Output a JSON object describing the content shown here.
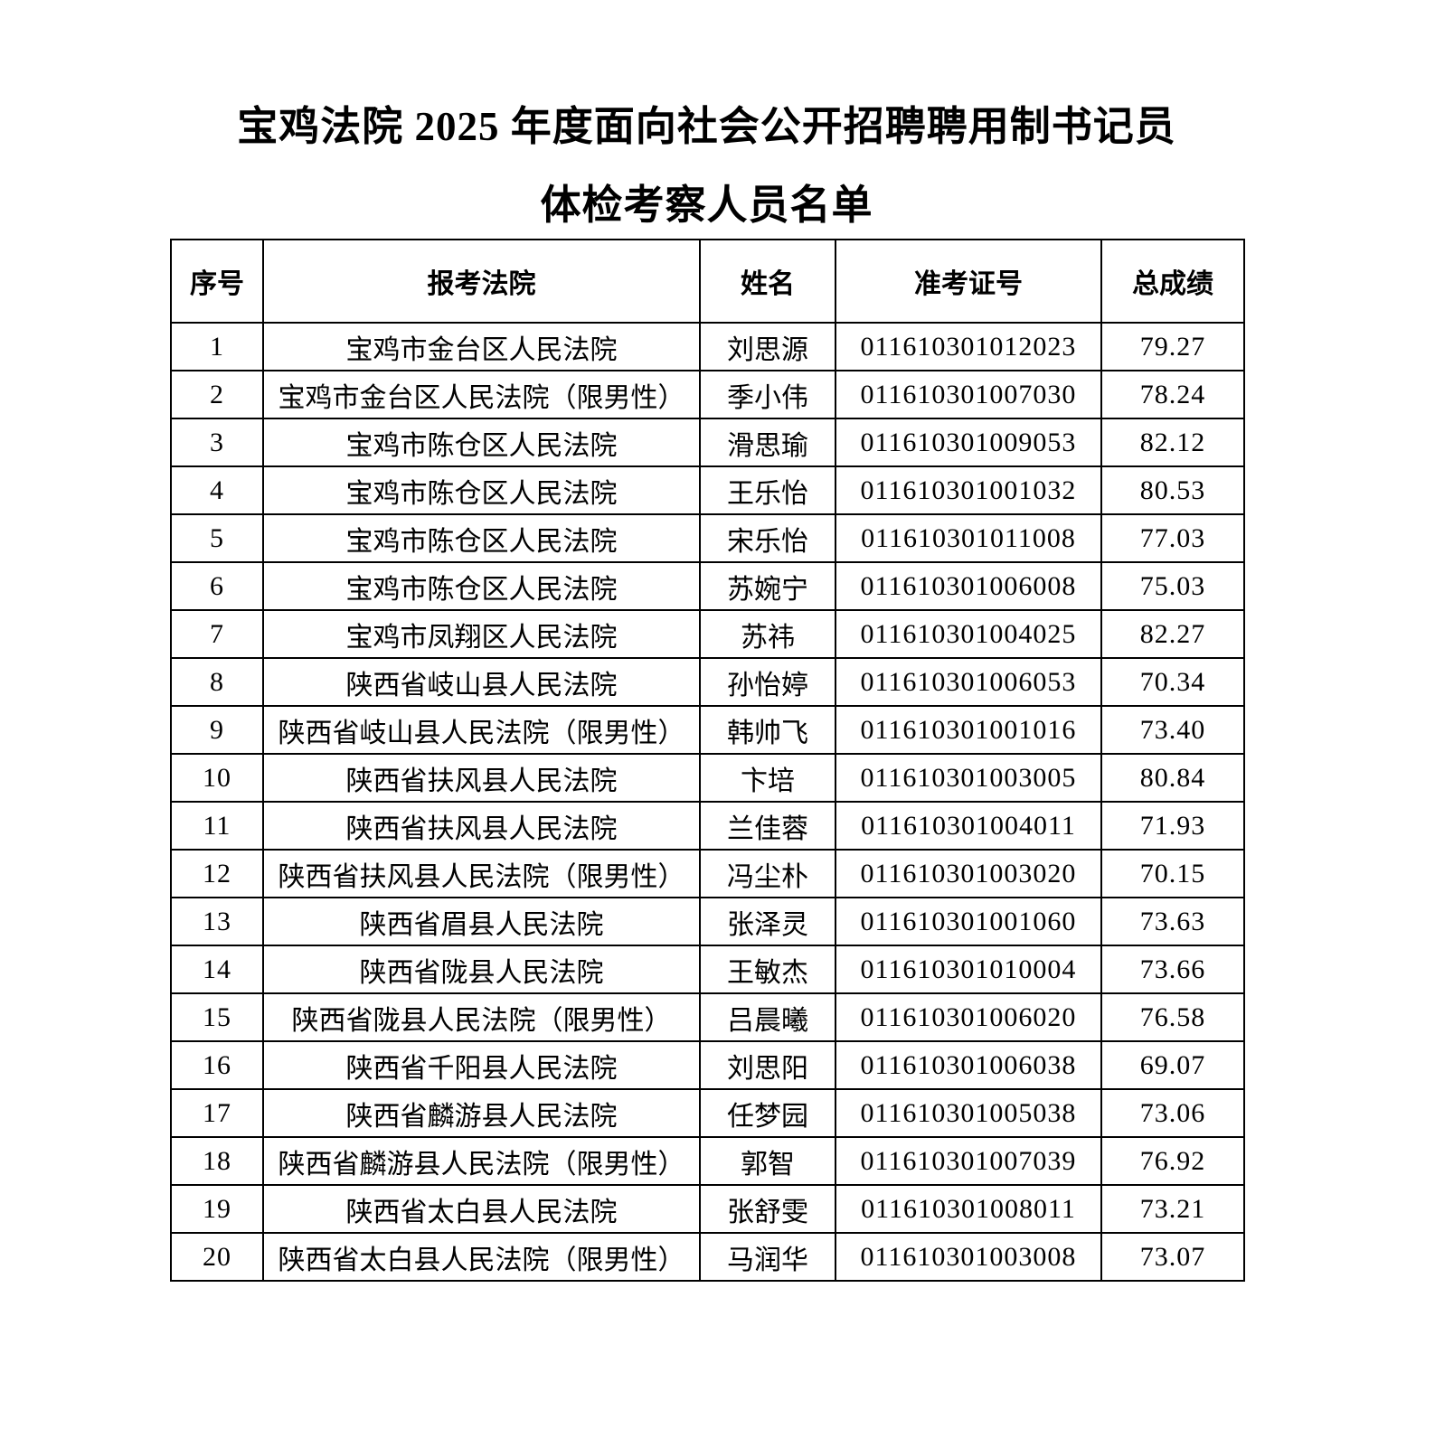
{
  "title": {
    "line1": "宝鸡法院 2025 年度面向社会公开招聘聘用制书记员",
    "line2": "体检考察人员名单"
  },
  "colors": {
    "text": "#000000",
    "background": "#ffffff",
    "border": "#000000"
  },
  "table": {
    "headers": [
      "序号",
      "报考法院",
      "姓名",
      "准考证号",
      "总成绩"
    ],
    "rows": [
      [
        "1",
        "宝鸡市金台区人民法院",
        "刘思源",
        "011610301012023",
        "79.27"
      ],
      [
        "2",
        "宝鸡市金台区人民法院（限男性）",
        "季小伟",
        "011610301007030",
        "78.24"
      ],
      [
        "3",
        "宝鸡市陈仓区人民法院",
        "滑思瑜",
        "011610301009053",
        "82.12"
      ],
      [
        "4",
        "宝鸡市陈仓区人民法院",
        "王乐怡",
        "011610301001032",
        "80.53"
      ],
      [
        "5",
        "宝鸡市陈仓区人民法院",
        "宋乐怡",
        "011610301011008",
        "77.03"
      ],
      [
        "6",
        "宝鸡市陈仓区人民法院",
        "苏婉宁",
        "011610301006008",
        "75.03"
      ],
      [
        "7",
        "宝鸡市凤翔区人民法院",
        "苏祎",
        "011610301004025",
        "82.27"
      ],
      [
        "8",
        "陕西省岐山县人民法院",
        "孙怡婷",
        "011610301006053",
        "70.34"
      ],
      [
        "9",
        "陕西省岐山县人民法院（限男性）",
        "韩帅飞",
        "011610301001016",
        "73.40"
      ],
      [
        "10",
        "陕西省扶风县人民法院",
        "卞培",
        "011610301003005",
        "80.84"
      ],
      [
        "11",
        "陕西省扶风县人民法院",
        "兰佳蓉",
        "011610301004011",
        "71.93"
      ],
      [
        "12",
        "陕西省扶风县人民法院（限男性）",
        "冯尘朴",
        "011610301003020",
        "70.15"
      ],
      [
        "13",
        "陕西省眉县人民法院",
        "张泽灵",
        "011610301001060",
        "73.63"
      ],
      [
        "14",
        "陕西省陇县人民法院",
        "王敏杰",
        "011610301010004",
        "73.66"
      ],
      [
        "15",
        "陕西省陇县人民法院（限男性）",
        "吕晨曦",
        "011610301006020",
        "76.58"
      ],
      [
        "16",
        "陕西省千阳县人民法院",
        "刘思阳",
        "011610301006038",
        "69.07"
      ],
      [
        "17",
        "陕西省麟游县人民法院",
        "任梦园",
        "011610301005038",
        "73.06"
      ],
      [
        "18",
        "陕西省麟游县人民法院（限男性）",
        "郭智",
        "011610301007039",
        "76.92"
      ],
      [
        "19",
        "陕西省太白县人民法院",
        "张舒雯",
        "011610301008011",
        "73.21"
      ],
      [
        "20",
        "陕西省太白县人民法院（限男性）",
        "马润华",
        "011610301003008",
        "73.07"
      ]
    ]
  }
}
